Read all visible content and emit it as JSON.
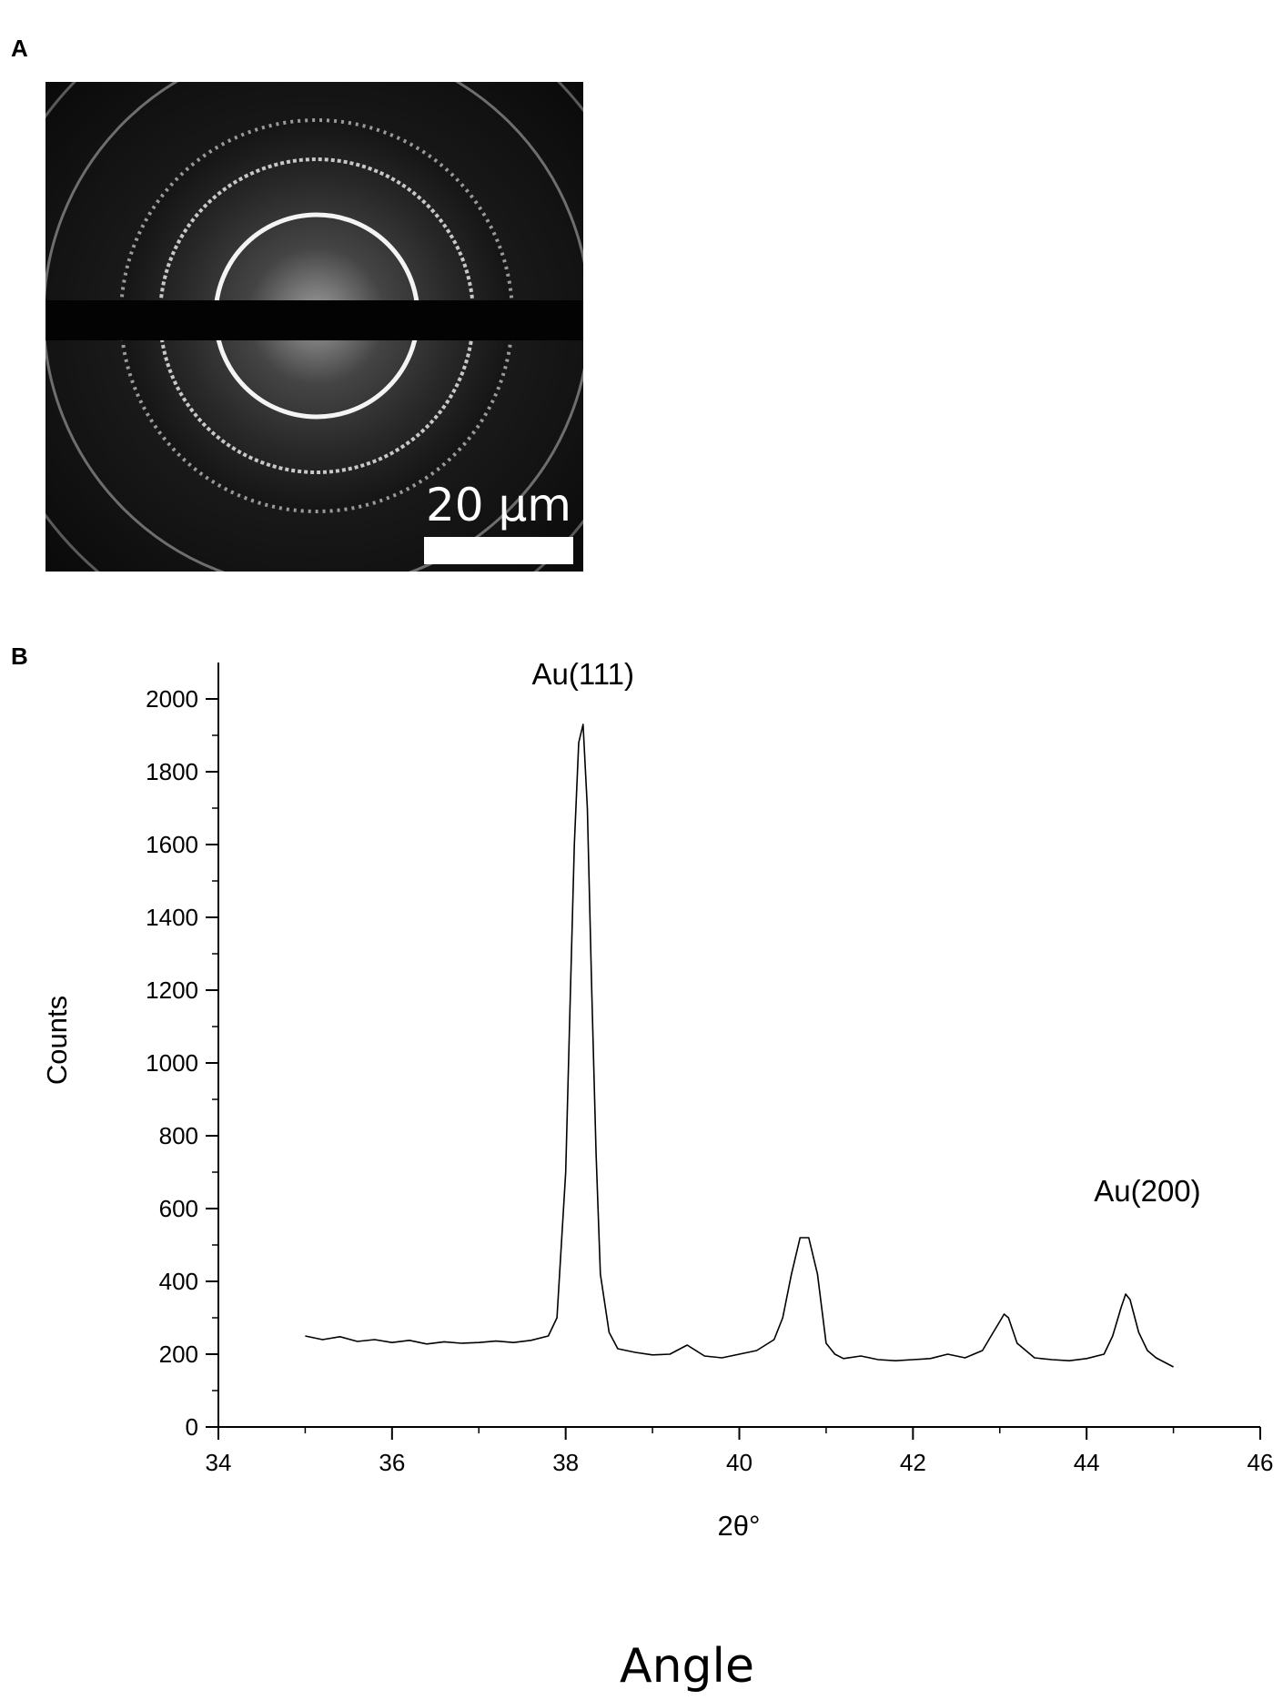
{
  "panel_a": {
    "label": "A",
    "scale_bar_text": "20 µm"
  },
  "panel_b": {
    "label": "B"
  },
  "caption": "Angle",
  "chart_data": {
    "type": "line",
    "xlabel": "2θ°",
    "ylabel": "Counts",
    "xlim": [
      34,
      46
    ],
    "ylim": [
      0,
      2100
    ],
    "xticks": [
      34,
      36,
      38,
      40,
      42,
      44,
      46
    ],
    "yticks": [
      0,
      200,
      400,
      600,
      800,
      1000,
      1200,
      1400,
      1600,
      1800,
      2000
    ],
    "grid": false,
    "annotations": [
      {
        "text": "Au(111)",
        "x": 38.2,
        "y": 2040
      },
      {
        "text": "Au(200)",
        "x": 44.7,
        "y": 620
      }
    ],
    "series": [
      {
        "color": "#000000",
        "x": [
          35.0,
          35.2,
          35.4,
          35.6,
          35.8,
          36.0,
          36.2,
          36.4,
          36.6,
          36.8,
          37.0,
          37.2,
          37.4,
          37.6,
          37.8,
          37.9,
          38.0,
          38.05,
          38.1,
          38.15,
          38.2,
          38.25,
          38.3,
          38.35,
          38.4,
          38.5,
          38.6,
          38.8,
          39.0,
          39.2,
          39.4,
          39.6,
          39.8,
          40.0,
          40.2,
          40.4,
          40.5,
          40.6,
          40.7,
          40.8,
          40.9,
          41.0,
          41.1,
          41.2,
          41.4,
          41.6,
          41.8,
          42.0,
          42.2,
          42.4,
          42.6,
          42.8,
          42.9,
          43.0,
          43.05,
          43.1,
          43.2,
          43.3,
          43.4,
          43.6,
          43.8,
          44.0,
          44.2,
          44.3,
          44.4,
          44.45,
          44.5,
          44.6,
          44.7,
          44.8,
          45.0
        ],
        "y": [
          250,
          240,
          248,
          235,
          240,
          232,
          238,
          228,
          234,
          230,
          232,
          236,
          232,
          238,
          250,
          300,
          700,
          1150,
          1600,
          1880,
          1930,
          1700,
          1200,
          750,
          420,
          260,
          215,
          205,
          198,
          200,
          225,
          195,
          190,
          200,
          210,
          240,
          300,
          420,
          520,
          520,
          420,
          230,
          200,
          188,
          195,
          185,
          182,
          185,
          188,
          200,
          190,
          210,
          250,
          290,
          310,
          300,
          230,
          210,
          190,
          185,
          182,
          188,
          200,
          250,
          330,
          365,
          350,
          260,
          210,
          190,
          165
        ]
      }
    ]
  }
}
